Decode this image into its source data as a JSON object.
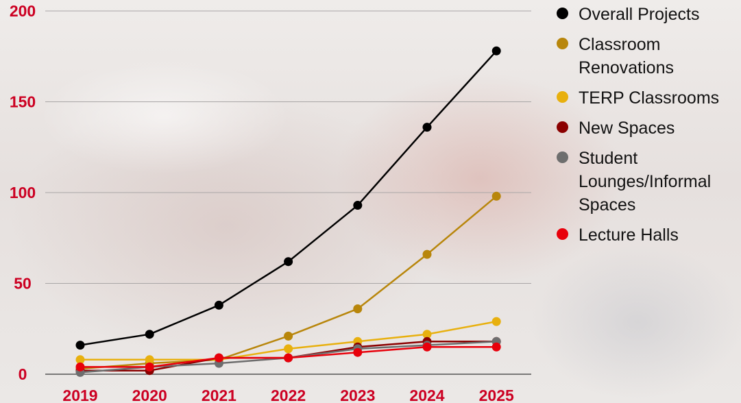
{
  "chart_data": {
    "type": "line",
    "categories": [
      "2019",
      "2020",
      "2021",
      "2022",
      "2023",
      "2024",
      "2025"
    ],
    "ylim": [
      0,
      200
    ],
    "yticks": [
      "0",
      "50",
      "100",
      "150",
      "200"
    ],
    "grid": true,
    "legend_position": "right",
    "series": [
      {
        "name": "Overall Projects",
        "color": "#000000",
        "values": [
          16,
          22,
          38,
          62,
          93,
          136,
          178
        ]
      },
      {
        "name": "Classroom Renovations",
        "color": "#b8860b",
        "values": [
          3,
          6,
          8,
          21,
          36,
          66,
          98
        ]
      },
      {
        "name": "TERP Classrooms",
        "color": "#e8b00e",
        "values": [
          8,
          8,
          8,
          14,
          18,
          22,
          29
        ]
      },
      {
        "name": "New Spaces",
        "color": "#8b0000",
        "values": [
          2,
          2,
          9,
          9,
          15,
          18,
          18
        ]
      },
      {
        "name": "Student Lounges/Informal Spaces",
        "color": "#6e6e6e",
        "values": [
          1,
          4,
          6,
          9,
          14,
          16,
          18
        ]
      },
      {
        "name": "Lecture Halls",
        "color": "#e8000b",
        "values": [
          4,
          4,
          9,
          9,
          12,
          15,
          15
        ]
      }
    ]
  },
  "style": {
    "tick_color": "#cc0022",
    "grid_color": "#a9a6a6"
  },
  "legend": {
    "items": [
      {
        "label": "Overall Projects",
        "color": "#000000"
      },
      {
        "label": "Classroom\nRenovations",
        "color": "#b8860b"
      },
      {
        "label": "TERP Classrooms",
        "color": "#e8b00e"
      },
      {
        "label": "New Spaces",
        "color": "#8b0000"
      },
      {
        "label": "Student\nLounges/Informal\nSpaces",
        "color": "#6e6e6e"
      },
      {
        "label": "Lecture Halls",
        "color": "#e8000b"
      }
    ]
  }
}
